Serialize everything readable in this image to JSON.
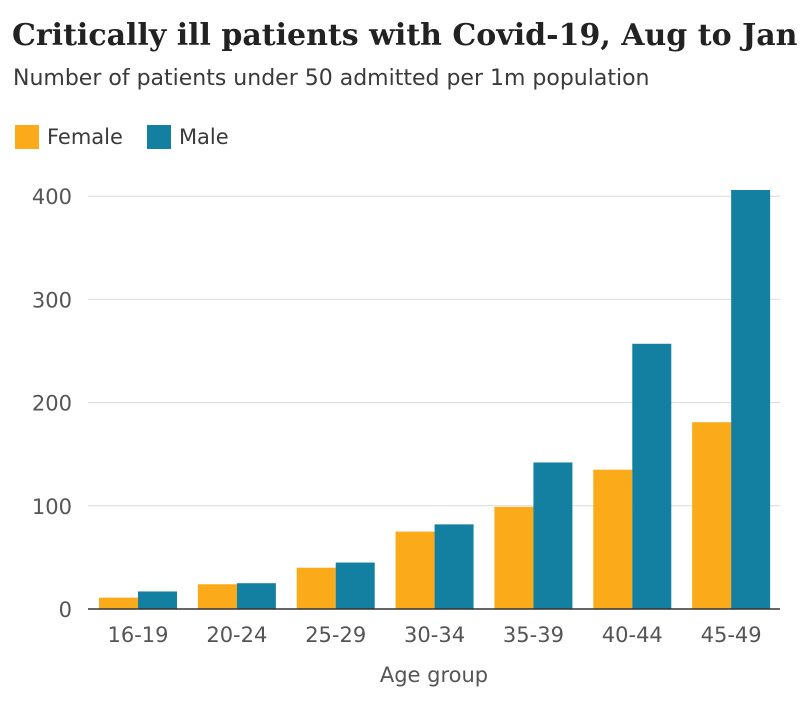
{
  "chart_data": {
    "type": "bar",
    "title": "Critically ill patients with Covid-19, Aug to Jan",
    "subtitle": "Number of patients under 50 admitted per 1m population",
    "xlabel": "Age group",
    "ylabel": "",
    "categories": [
      "16-19",
      "20-24",
      "25-29",
      "30-34",
      "35-39",
      "40-44",
      "45-49"
    ],
    "series": [
      {
        "name": "Female",
        "color": "#fbaa19",
        "values": [
          11,
          24,
          40,
          75,
          99,
          135,
          181
        ]
      },
      {
        "name": "Male",
        "color": "#1380a1",
        "values": [
          17,
          25,
          45,
          82,
          142,
          257,
          406
        ]
      }
    ],
    "ylim": [
      0,
      420
    ],
    "yticks": [
      0,
      100,
      200,
      300,
      400
    ],
    "grid": true,
    "legend": "top-left"
  }
}
